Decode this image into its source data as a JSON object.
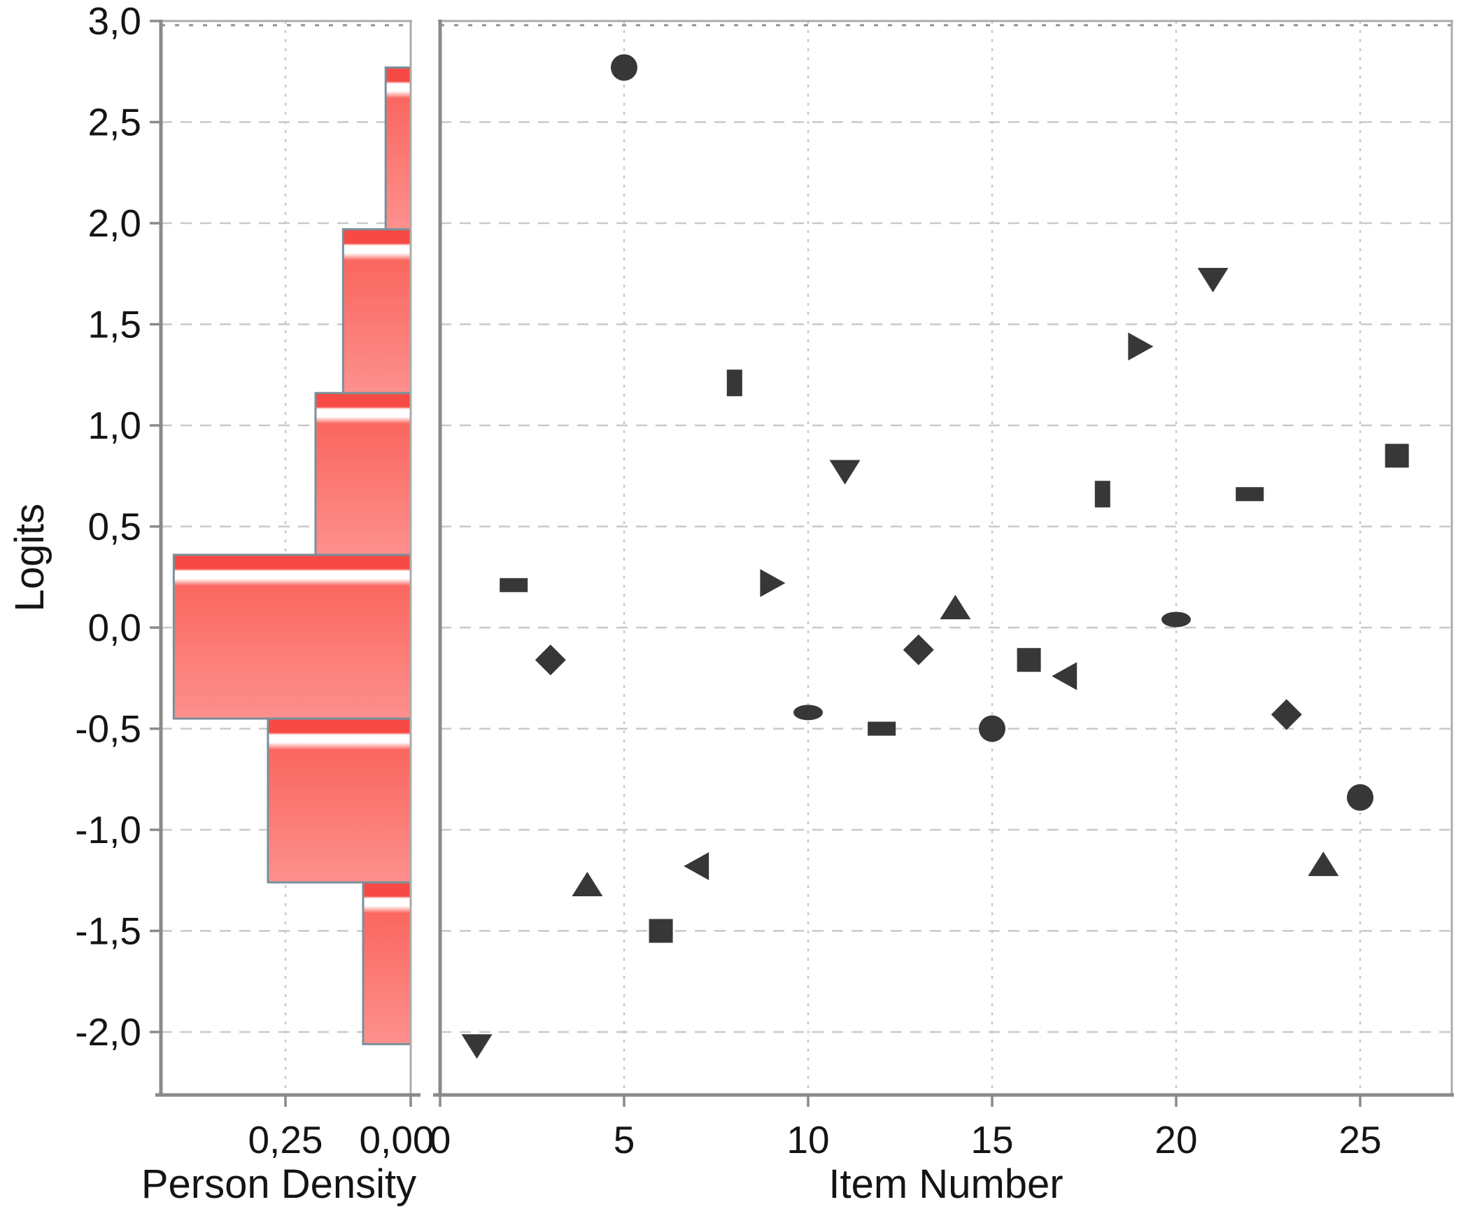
{
  "figure": {
    "background": "#ffffff"
  },
  "style": {
    "bar_fill_top": "#f74a44",
    "bar_fill_mid": "#fa675f",
    "bar_fill_bottom": "#fd908d",
    "bar_stripe": "#ffffff",
    "bar_stroke": "#78909b",
    "marker_color": "#373737",
    "grid_color": "#c9c9c9",
    "axis_color": "#8a8a8a",
    "frame_color": "#ababab",
    "text_color": "#141414"
  },
  "chart_data": [
    {
      "type": "bar",
      "name": "person-density-histogram",
      "orientation": "horizontal",
      "xlabel": "Person Density",
      "ylabel": "Logits",
      "x_tick_labels": [
        "0,25",
        "0,00"
      ],
      "x_tick_values": [
        0.25,
        0.0
      ],
      "xlim_left_to_right": [
        0.5,
        0.0
      ],
      "ylim": [
        -2.31,
        3.0
      ],
      "grid": true,
      "bins": [
        {
          "from": -2.06,
          "to": -1.26,
          "density": 0.095
        },
        {
          "from": -1.26,
          "to": -0.45,
          "density": 0.285
        },
        {
          "from": -0.45,
          "to": 0.36,
          "density": 0.473
        },
        {
          "from": 0.36,
          "to": 1.16,
          "density": 0.19
        },
        {
          "from": 1.16,
          "to": 1.97,
          "density": 0.135
        },
        {
          "from": 1.97,
          "to": 2.77,
          "density": 0.05
        }
      ]
    },
    {
      "type": "scatter",
      "name": "item-measure-scatter",
      "xlabel": "Item Number",
      "ylabel": "Logits",
      "x_tick_labels": [
        "0",
        "5",
        "10",
        "15",
        "20",
        "25"
      ],
      "x_tick_values": [
        0,
        5,
        10,
        15,
        20,
        25
      ],
      "y_tick_labels": [
        "3,0",
        "2,5",
        "2,0",
        "1,5",
        "1,0",
        "0,5",
        "0,0",
        "-0,5",
        "-1,0",
        "-1,5",
        "-2,0"
      ],
      "y_tick_values": [
        3.0,
        2.5,
        2.0,
        1.5,
        1.0,
        0.5,
        0.0,
        -0.5,
        -1.0,
        -1.5,
        -2.0
      ],
      "xlim": [
        0,
        27.5
      ],
      "ylim": [
        -2.31,
        3.0
      ],
      "grid": true,
      "legend": false,
      "points": [
        {
          "item": 1,
          "logit": -2.07,
          "marker": "triangle-down"
        },
        {
          "item": 2,
          "logit": 0.21,
          "marker": "rect-h"
        },
        {
          "item": 3,
          "logit": -0.16,
          "marker": "diamond"
        },
        {
          "item": 4,
          "logit": -1.27,
          "marker": "triangle-up"
        },
        {
          "item": 5,
          "logit": 2.77,
          "marker": "circle"
        },
        {
          "item": 6,
          "logit": -1.5,
          "marker": "square"
        },
        {
          "item": 7,
          "logit": -1.18,
          "marker": "triangle-left"
        },
        {
          "item": 8,
          "logit": 1.21,
          "marker": "rect-v"
        },
        {
          "item": 9,
          "logit": 0.22,
          "marker": "triangle-right"
        },
        {
          "item": 10,
          "logit": -0.42,
          "marker": "ellipse"
        },
        {
          "item": 11,
          "logit": 0.77,
          "marker": "triangle-down"
        },
        {
          "item": 12,
          "logit": -0.5,
          "marker": "rect-h"
        },
        {
          "item": 13,
          "logit": -0.11,
          "marker": "diamond"
        },
        {
          "item": 14,
          "logit": 0.1,
          "marker": "triangle-up"
        },
        {
          "item": 15,
          "logit": -0.5,
          "marker": "circle"
        },
        {
          "item": 16,
          "logit": -0.16,
          "marker": "square"
        },
        {
          "item": 17,
          "logit": -0.24,
          "marker": "triangle-left"
        },
        {
          "item": 18,
          "logit": 0.66,
          "marker": "rect-v"
        },
        {
          "item": 19,
          "logit": 1.39,
          "marker": "triangle-right"
        },
        {
          "item": 20,
          "logit": 0.04,
          "marker": "ellipse"
        },
        {
          "item": 21,
          "logit": 1.72,
          "marker": "triangle-down"
        },
        {
          "item": 22,
          "logit": 0.66,
          "marker": "rect-h"
        },
        {
          "item": 23,
          "logit": -0.43,
          "marker": "diamond"
        },
        {
          "item": 24,
          "logit": -1.17,
          "marker": "triangle-up"
        },
        {
          "item": 25,
          "logit": -0.84,
          "marker": "circle"
        },
        {
          "item": 26,
          "logit": 0.85,
          "marker": "square"
        }
      ]
    }
  ]
}
